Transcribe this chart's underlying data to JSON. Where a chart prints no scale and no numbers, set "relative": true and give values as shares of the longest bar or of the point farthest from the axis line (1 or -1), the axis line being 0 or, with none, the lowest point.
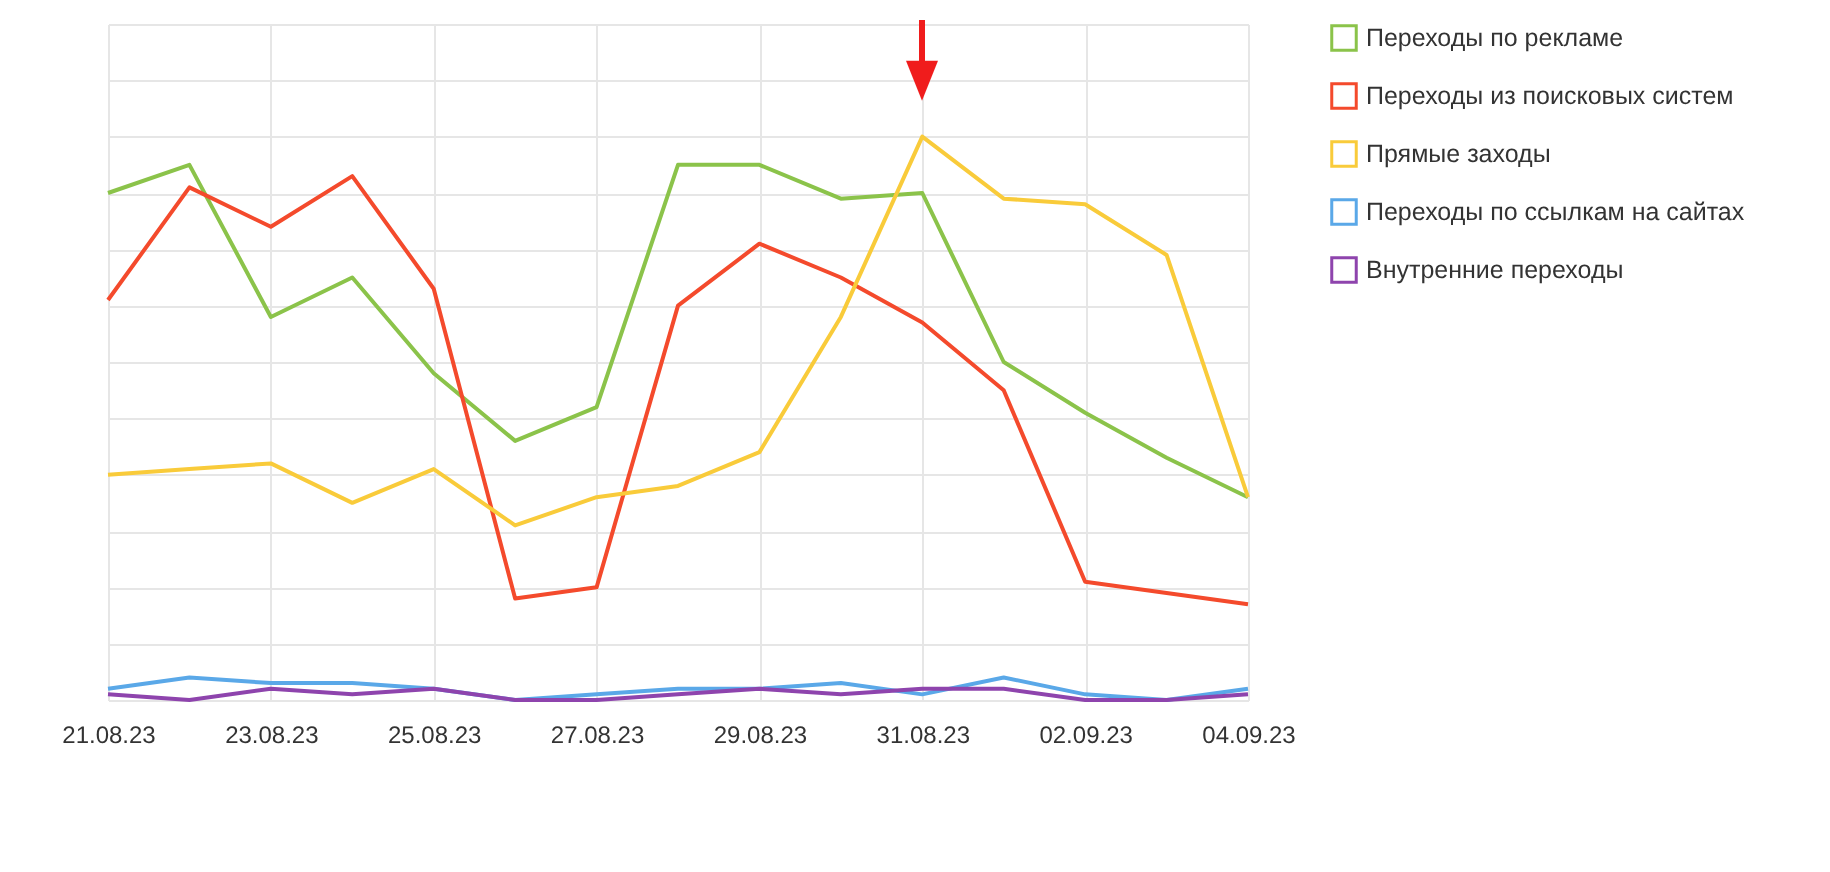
{
  "chart_data": {
    "type": "line",
    "relative": true,
    "grid": true,
    "legend": "right",
    "marker": "none",
    "line_style": "solid",
    "categories": [
      "21.08.23",
      null,
      "23.08.23",
      null,
      "25.08.23",
      null,
      "27.08.23",
      null,
      "29.08.23",
      null,
      "31.08.23",
      null,
      "02.09.23",
      null,
      "04.09.23"
    ],
    "series": [
      {
        "name": "Переходы по рекламе",
        "color": "#8bc34a",
        "values": [
          0.9,
          0.95,
          0.68,
          0.75,
          0.58,
          0.46,
          0.52,
          0.95,
          0.95,
          0.89,
          0.9,
          0.6,
          0.51,
          0.43,
          0.36
        ]
      },
      {
        "name": "Переходы из поисковых систем",
        "color": "#f44a2c",
        "values": [
          0.71,
          0.91,
          0.84,
          0.93,
          0.73,
          0.18,
          0.2,
          0.7,
          0.81,
          0.75,
          0.67,
          0.55,
          0.21,
          0.19,
          0.17
        ]
      },
      {
        "name": "Прямые заходы",
        "color": "#f9cb3a",
        "values": [
          0.4,
          0.41,
          0.42,
          0.35,
          0.41,
          0.31,
          0.36,
          0.38,
          0.44,
          0.68,
          1,
          0.89,
          0.88,
          0.79,
          0.36
        ]
      },
      {
        "name": "Переходы по ссылкам на сайтах",
        "color": "#5aa8e8",
        "values": [
          0.02,
          0.04,
          0.03,
          0.03,
          0.02,
          0,
          0.01,
          0.02,
          0.02,
          0.03,
          0.01,
          0.04,
          0.01,
          0,
          0.02
        ]
      },
      {
        "name": "Внутренние переходы",
        "color": "#8e44ad",
        "values": [
          0.01,
          0,
          0.02,
          0.01,
          0.02,
          0,
          0,
          0.01,
          0.02,
          0.01,
          0.02,
          0.02,
          0,
          0,
          0.01
        ]
      }
    ]
  }
}
